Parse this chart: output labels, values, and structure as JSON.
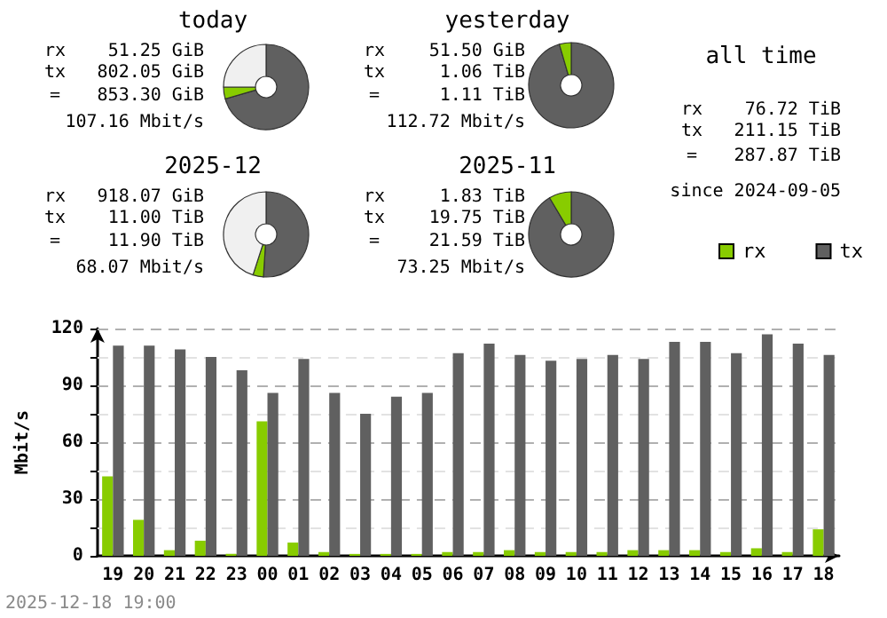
{
  "chart_data": [
    {
      "type": "donut",
      "title": "today",
      "annotations": [
        "rx    51.25 GiB",
        "tx   802.05 GiB",
        "=   853.30 GiB",
        "107.16 Mbit/s"
      ],
      "categories": [
        null,
        null,
        null
      ],
      "values": [
        70.5,
        4.5,
        25
      ],
      "colors": [
        "#606060",
        "#88cc00",
        "#f0f0f0"
      ]
    },
    {
      "type": "donut",
      "title": "yesterday",
      "annotations": [
        "rx    51.50 GiB",
        "tx     1.06 TiB",
        "=     1.11 TiB",
        "112.72 Mbit/s"
      ],
      "categories": [
        null,
        null
      ],
      "values": [
        95.5,
        4.5
      ],
      "colors": [
        "#606060",
        "#88cc00"
      ]
    },
    {
      "type": "other",
      "title": "all time",
      "annotations": [
        "rx    76.72 TiB",
        "tx   211.15 TiB",
        "=   287.87 TiB",
        "since 2024-09-05"
      ]
    },
    {
      "type": "donut",
      "title": "2025-12",
      "annotations": [
        "rx   918.07 GiB",
        "tx    11.00 TiB",
        "=    11.90 TiB",
        "68.07 Mbit/s"
      ],
      "categories": [
        null,
        null,
        null
      ],
      "values": [
        51,
        4,
        45
      ],
      "colors": [
        "#606060",
        "#88cc00",
        "#f0f0f0"
      ]
    },
    {
      "type": "donut",
      "title": "2025-11",
      "annotations": [
        "rx     1.83 TiB",
        "tx    19.75 TiB",
        "=    21.59 TiB",
        "73.25 Mbit/s"
      ],
      "categories": [
        null,
        null
      ],
      "values": [
        91.5,
        8.5
      ],
      "colors": [
        "#606060",
        "#88cc00"
      ]
    },
    {
      "type": "bar",
      "ylabel": "Mbit/s",
      "categories": [
        "19",
        "20",
        "21",
        "22",
        "23",
        "00",
        "01",
        "02",
        "03",
        "04",
        "05",
        "06",
        "07",
        "08",
        "09",
        "10",
        "11",
        "12",
        "13",
        "14",
        "15",
        "16",
        "17",
        "18"
      ],
      "series": [
        {
          "name": "rx",
          "color": "#88cc00",
          "values": [
            42,
            19,
            3,
            8,
            1,
            71,
            7,
            2,
            1,
            1,
            1,
            2,
            2,
            3,
            2,
            2,
            2,
            3,
            3,
            3,
            2,
            4,
            2,
            14
          ]
        },
        {
          "name": "tx",
          "color": "#606060",
          "values": [
            111,
            111,
            109,
            105,
            98,
            86,
            104,
            86,
            75,
            84,
            86,
            107,
            112,
            106,
            103,
            104,
            106,
            104,
            113,
            113,
            107,
            117,
            112,
            106
          ]
        }
      ],
      "ylim": [
        0,
        120
      ],
      "yticks": [
        0,
        {
          "value": 15,
          "label": null
        },
        30,
        {
          "value": 45,
          "label": null
        },
        60,
        {
          "value": 75,
          "label": null
        },
        90,
        {
          "value": 105,
          "label": null
        },
        120
      ],
      "grid": "y",
      "legend": "top right",
      "annotations": [
        "2025-12-18 19:00"
      ]
    }
  ]
}
